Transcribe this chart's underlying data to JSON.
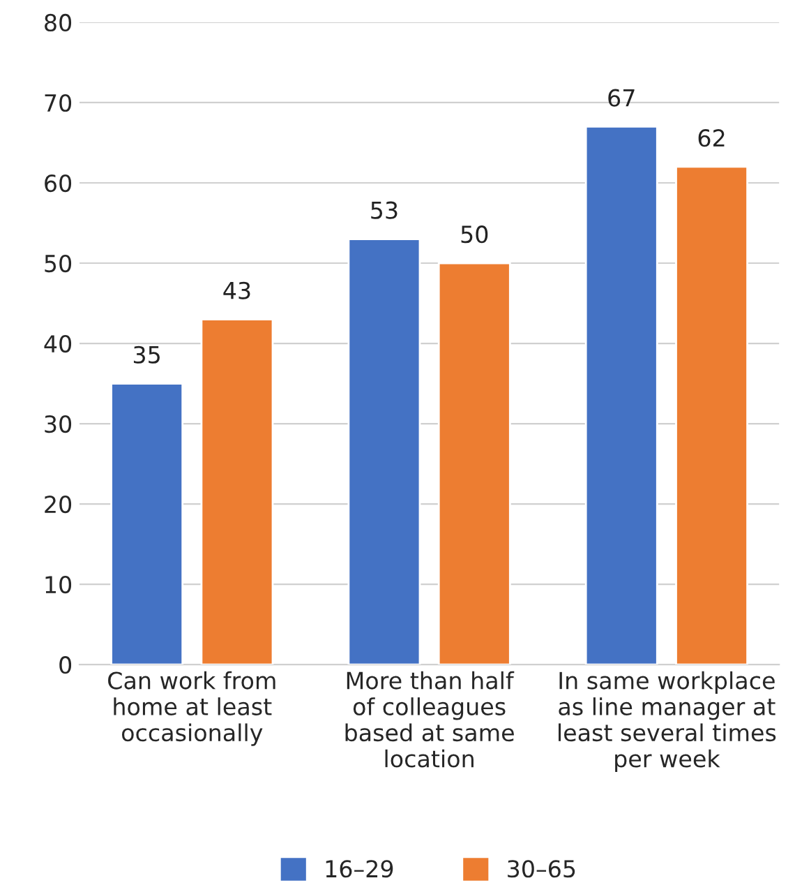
{
  "chart_data": {
    "type": "bar",
    "categories": [
      "Can work from\nhome at least\noccasionally",
      "More than half\nof colleagues\nbased at same\nlocation",
      "In same workplace\nas line manager at\nleast several times\nper week"
    ],
    "series": [
      {
        "name": "16–29",
        "color": "#4472c4",
        "values": [
          35,
          53,
          67
        ]
      },
      {
        "name": "30–65",
        "color": "#ed7d31",
        "values": [
          43,
          50,
          62
        ]
      }
    ],
    "ylim": [
      0,
      80
    ],
    "yticks": [
      0,
      10,
      20,
      30,
      40,
      50,
      60,
      70,
      80
    ],
    "grid": "y",
    "legend": "bottom",
    "data_labels": true
  }
}
